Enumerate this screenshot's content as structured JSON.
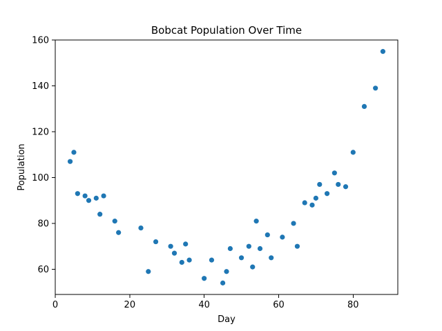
{
  "chart_data": {
    "type": "scatter",
    "title": "Bobcat Population Over Time",
    "xlabel": "Day",
    "ylabel": "Population",
    "xlim": [
      0,
      92
    ],
    "ylim": [
      49,
      160
    ],
    "xticks": [
      0,
      20,
      40,
      60,
      80
    ],
    "yticks": [
      60,
      80,
      100,
      120,
      140,
      160
    ],
    "grid": false,
    "marker_color": "#1f77b4",
    "series": [
      {
        "x": [
          4,
          5,
          6,
          8,
          9,
          11,
          12,
          13,
          16,
          17,
          23,
          25,
          27,
          31,
          32,
          34,
          35,
          36,
          40,
          42,
          45,
          46,
          47,
          50,
          52,
          53,
          54,
          55,
          57,
          58,
          61,
          64,
          65,
          67,
          69,
          70,
          71,
          73,
          75,
          76,
          78,
          80,
          83,
          86,
          88
        ],
        "y": [
          107,
          111,
          93,
          92,
          90,
          91,
          84,
          92,
          81,
          76,
          78,
          59,
          72,
          70,
          67,
          63,
          71,
          64,
          56,
          64,
          54,
          59,
          69,
          65,
          70,
          61,
          81,
          69,
          75,
          65,
          74,
          80,
          70,
          89,
          88,
          91,
          97,
          93,
          102,
          97,
          96,
          111,
          131,
          139,
          155
        ]
      }
    ]
  }
}
